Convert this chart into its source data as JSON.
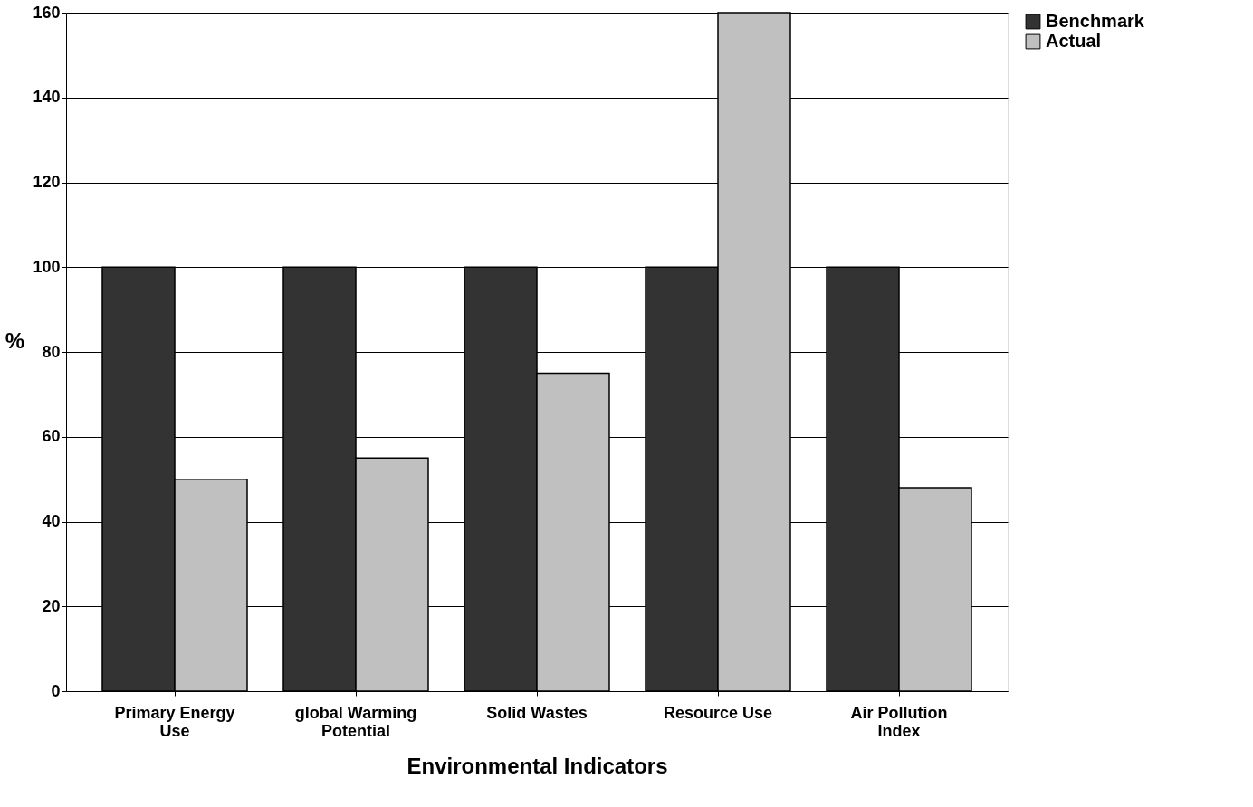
{
  "chart_data": {
    "type": "bar",
    "xlabel": "Environmental Indicators",
    "ylabel": "%",
    "categories": [
      "Primary Energy Use",
      "global Warming Potential",
      "Solid Wastes",
      "Resource Use",
      "Air Pollution Index"
    ],
    "series": [
      {
        "name": "Benchmark",
        "color": "#333333",
        "values": [
          100,
          100,
          100,
          100,
          100
        ]
      },
      {
        "name": "Actual",
        "color": "#c0c0c0",
        "values": [
          50,
          55,
          75,
          160,
          48
        ]
      }
    ],
    "ylim": [
      0,
      160
    ],
    "yticks": [
      0,
      20,
      40,
      60,
      80,
      100,
      120,
      140,
      160
    ],
    "grid": "y",
    "legend": "right"
  }
}
